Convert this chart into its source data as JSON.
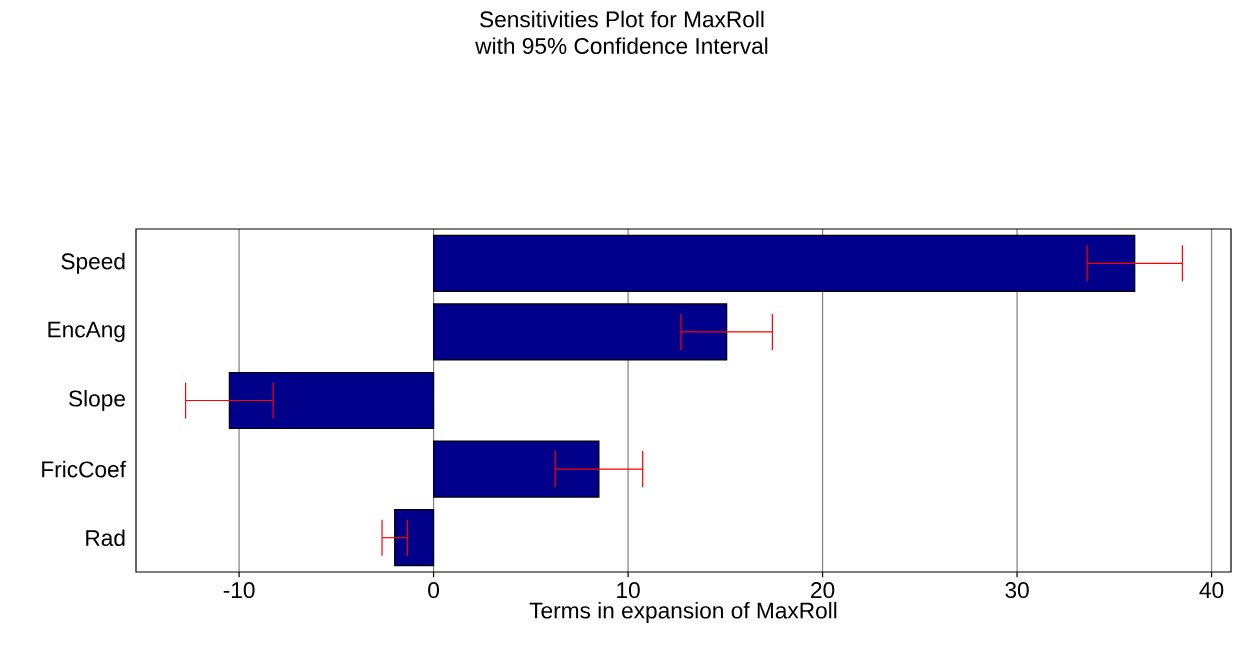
{
  "chart_data": {
    "type": "bar",
    "orientation": "horizontal",
    "title": "Sensitivities Plot for MaxRoll",
    "subtitle": "with 95% Confidence Interval",
    "xlabel": "Terms in expansion of MaxRoll",
    "categories": [
      "Speed",
      "EncAng",
      "Slope",
      "FricCoef",
      "Rad"
    ],
    "values": [
      36.05,
      15.07,
      -10.5,
      8.5,
      -2.0
    ],
    "errors": [
      2.45,
      2.35,
      2.25,
      2.25,
      0.65
    ],
    "color": "#00008b",
    "xlim": [
      -15.3,
      41.0
    ],
    "xticks": [
      -10,
      0,
      10,
      20,
      30,
      40
    ],
    "grid": "x"
  }
}
